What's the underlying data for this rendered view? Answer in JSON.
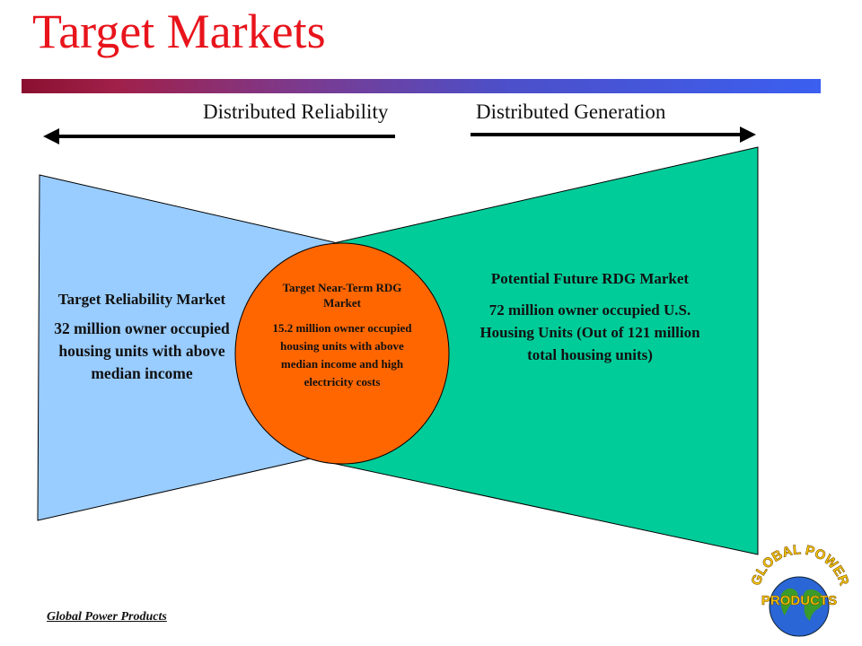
{
  "slide": {
    "title": "Target Markets",
    "direction_left": "Distributed Reliability",
    "direction_right": "Distributed Generation",
    "footer": "Global Power Products"
  },
  "left_market": {
    "heading": "Target Reliability Market",
    "body": "32 million owner occupied housing units with above median income",
    "color": "#99ccff"
  },
  "center_market": {
    "heading": "Target Near-Term RDG Market",
    "body": "15.2 million owner occupied housing units with above median income and high electricity costs",
    "color": "#ff6600"
  },
  "right_market": {
    "heading": "Potential Future  RDG Market",
    "body": "72 million owner occupied U.S. Housing Units (Out of 121 million total housing units)",
    "color": "#00cc99"
  },
  "logo": {
    "line1": "GLOBAL POWER",
    "line2": "PRODUCTS"
  }
}
